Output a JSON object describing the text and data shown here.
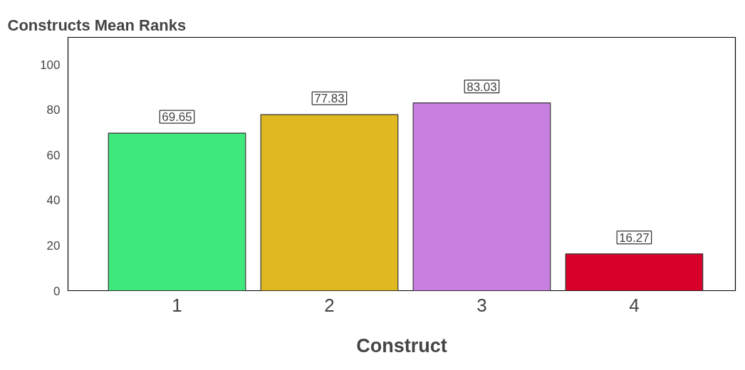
{
  "chart_data": {
    "type": "bar",
    "title": "Constructs Mean Ranks",
    "xlabel": "Construct",
    "categories": [
      "1",
      "2",
      "3",
      "4"
    ],
    "values": [
      69.65,
      77.83,
      83.03,
      16.27
    ],
    "colors": [
      "#3ee87a",
      "#e0b820",
      "#c880e0",
      "#d8002a"
    ],
    "ylim": [
      0,
      112
    ],
    "yticks": [
      0,
      20,
      40,
      60,
      80,
      100
    ],
    "grid": false,
    "data_labels": true
  }
}
